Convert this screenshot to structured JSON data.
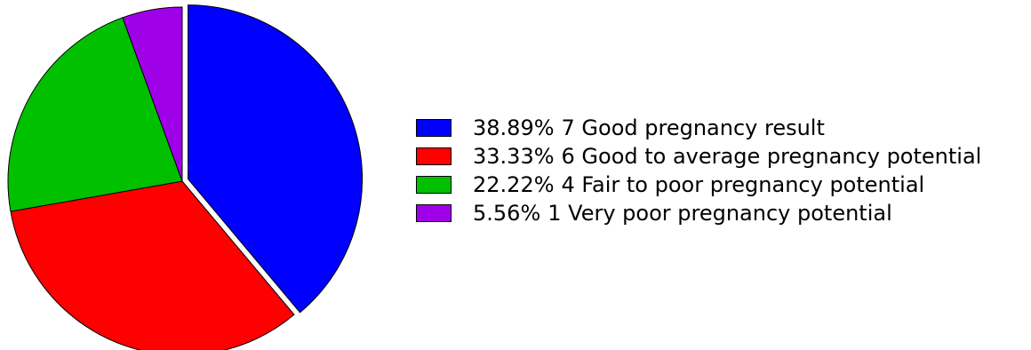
{
  "chart_data": {
    "type": "pie",
    "categories": [
      "Good pregnancy result",
      "Good to average pregnancy potential",
      "Fair to poor pregnancy potential",
      "Very poor pregnancy potential"
    ],
    "values": [
      7,
      6,
      4,
      1
    ],
    "percentages": [
      "38.89%",
      "33.33%",
      "22.22%",
      "5.56%"
    ],
    "colors": [
      "#0000ff",
      "#ff0000",
      "#00c000",
      "#a000e8"
    ],
    "exploded": [
      true,
      false,
      false,
      false
    ],
    "legend": {
      "placement": "right",
      "entries": [
        {
          "pct": "38.89%",
          "label": "7 Good pregnancy result",
          "color": "#0000ff"
        },
        {
          "pct": "33.33%",
          "label": "6 Good to average pregnancy potential",
          "color": "#ff0000"
        },
        {
          "pct": "22.22%",
          "label": "4 Fair to poor pregnancy potential",
          "color": "#00c000"
        },
        {
          "pct": "5.56%",
          "label": "1 Very poor pregnancy potential",
          "color": "#a000e8"
        }
      ]
    }
  }
}
